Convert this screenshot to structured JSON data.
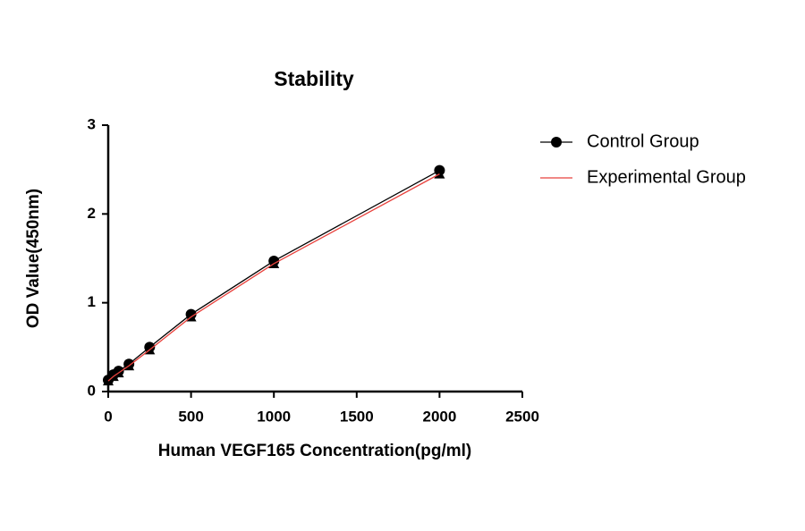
{
  "chart_data": {
    "type": "scatter",
    "title": "Stability",
    "x_label": "Human VEGF165 Concentration(pg/ml)",
    "y_label": "OD Value(450nm)",
    "x": [
      0,
      31.25,
      62.5,
      125,
      250,
      500,
      1000,
      2000
    ],
    "series": [
      {
        "name": "Control Group",
        "color": "#000000",
        "marker": "circle",
        "marker_color": "#000000",
        "legend_marker": true,
        "values": [
          0.13,
          0.19,
          0.23,
          0.31,
          0.5,
          0.87,
          1.47,
          2.49
        ]
      },
      {
        "name": "Experimental Group",
        "color": "#e8413c",
        "marker": "triangle",
        "marker_color": "#000000",
        "legend_marker": false,
        "values": [
          0.12,
          0.17,
          0.21,
          0.29,
          0.47,
          0.84,
          1.44,
          2.45
        ]
      }
    ],
    "xlim": [
      0,
      2500
    ],
    "xticks": [
      0,
      500,
      1000,
      1500,
      2000,
      2500
    ],
    "ylim": [
      0,
      3
    ],
    "yticks": [
      0,
      1,
      2,
      3
    ],
    "legend": "right",
    "grid": false
  }
}
